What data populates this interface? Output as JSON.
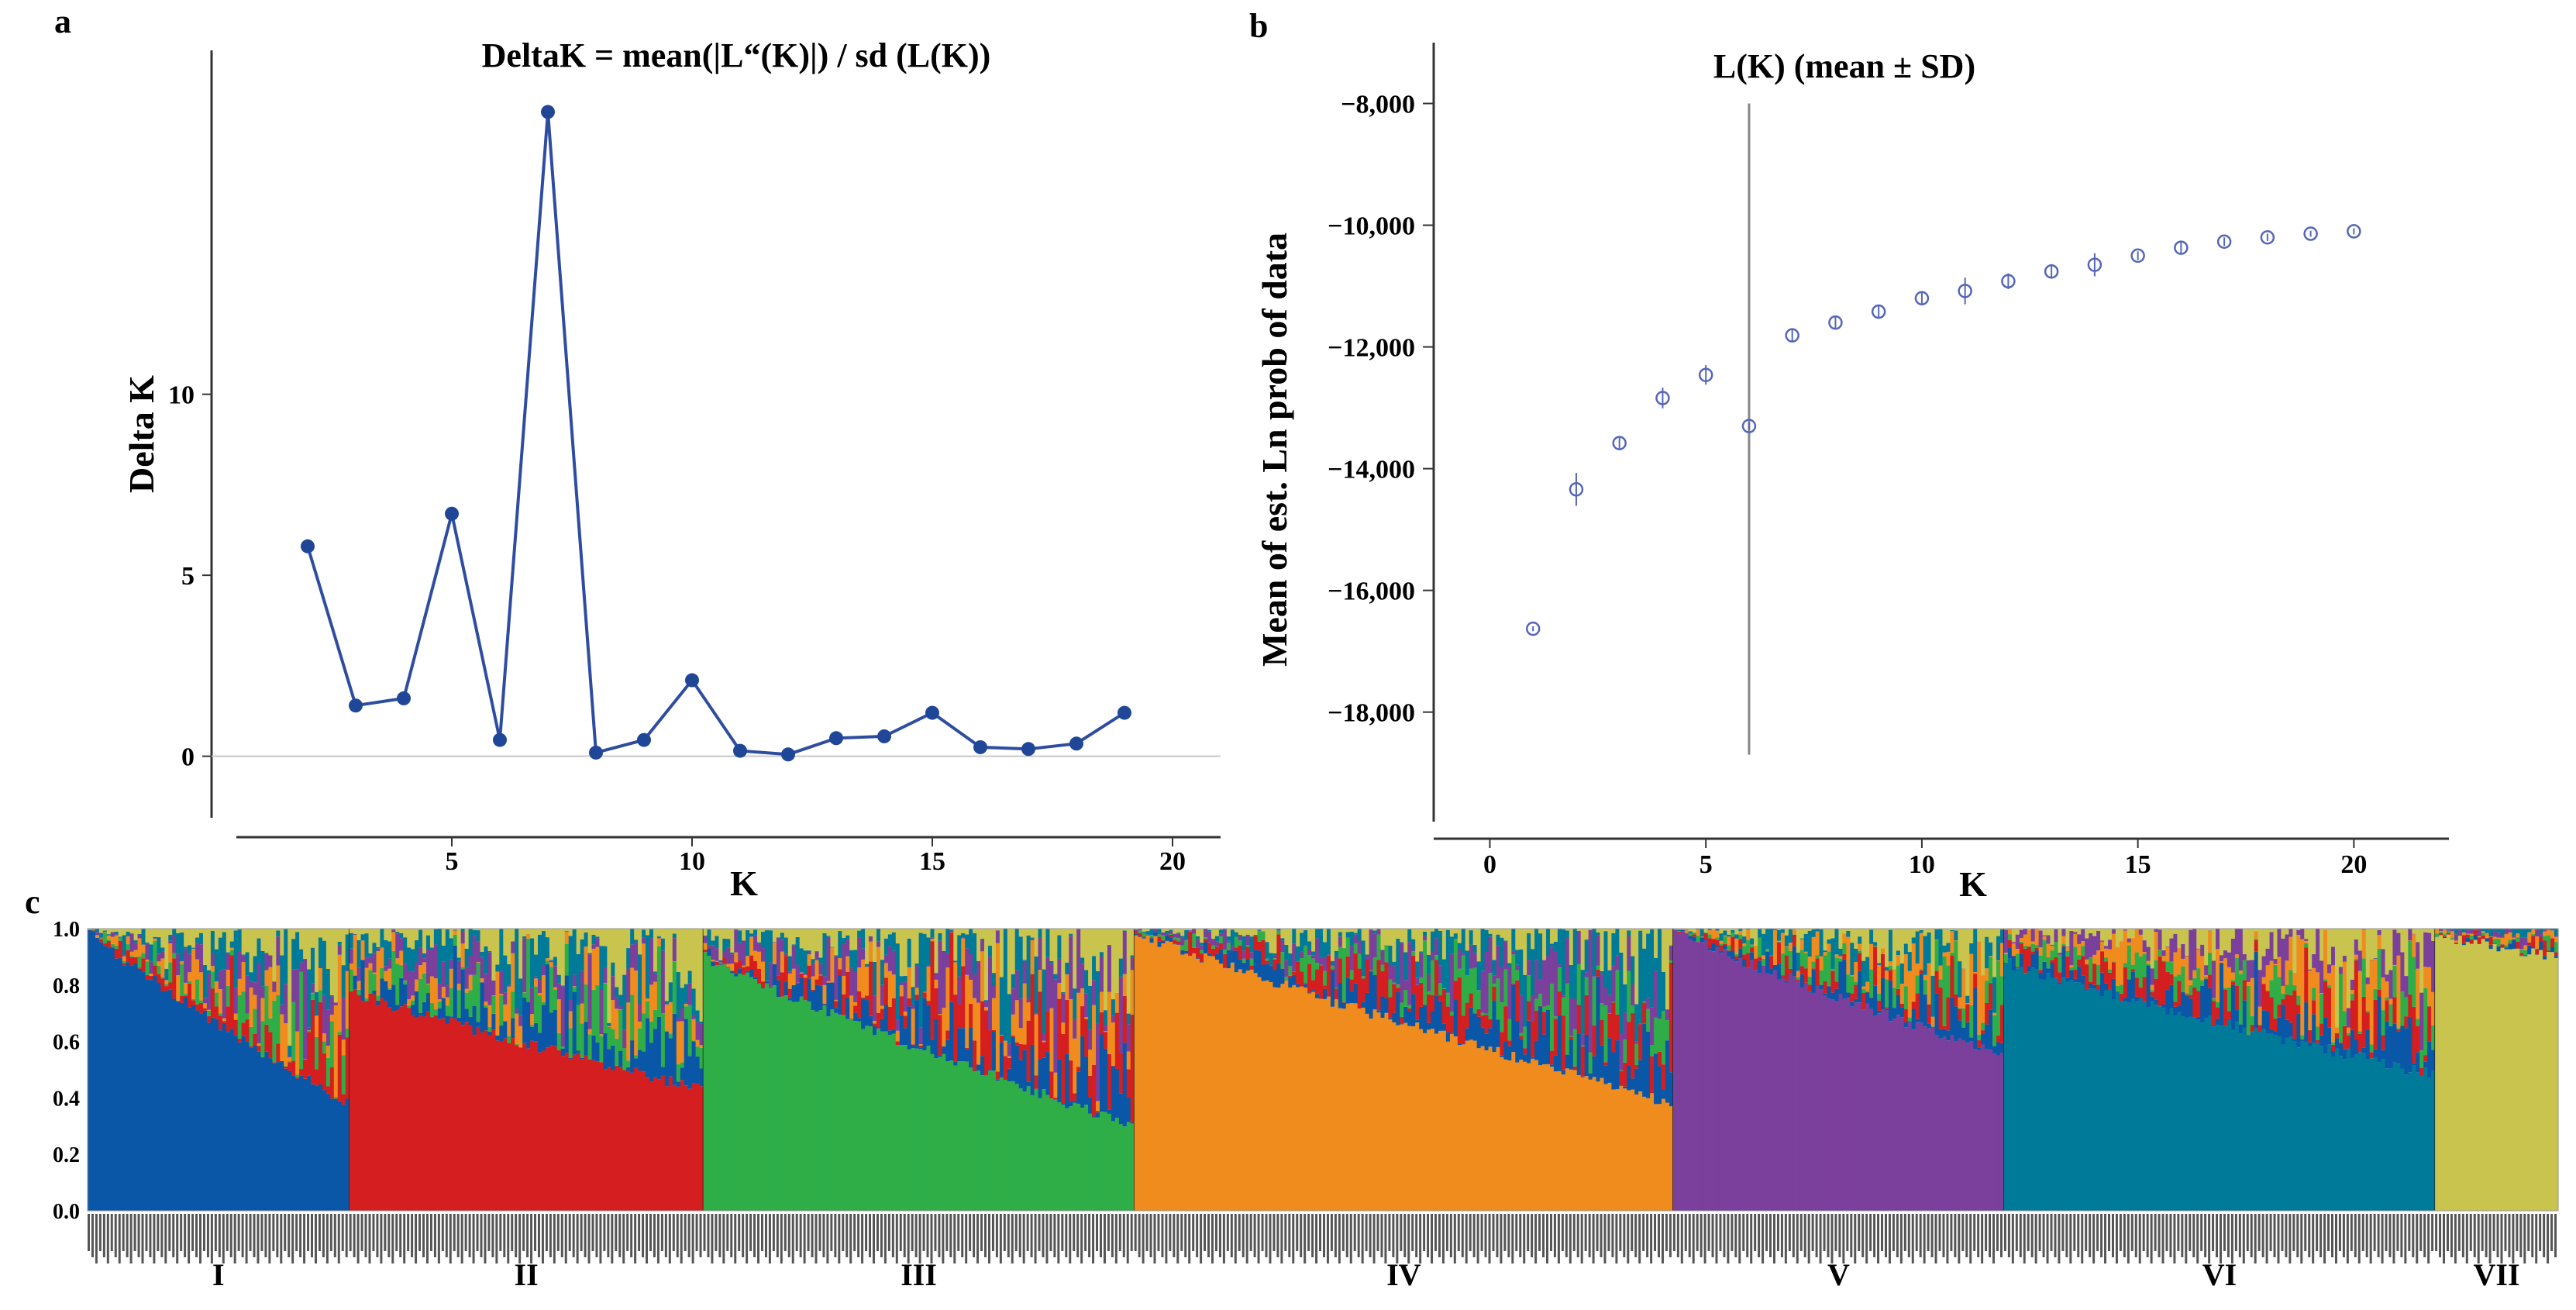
{
  "chart_data": [
    {
      "panel": "a",
      "type": "line",
      "title": "DeltaK = mean(|L“(K)|) / sd (L(K))",
      "xlabel": "K",
      "ylabel": "Delta K",
      "xlim": [
        0,
        21
      ],
      "ylim": [
        -1.7,
        19.5
      ],
      "xticks": [
        5,
        10,
        15,
        20
      ],
      "yticks": [
        0,
        5,
        10
      ],
      "color": "#2F4DA0",
      "series": [
        {
          "name": "Delta K",
          "x": [
            2,
            3,
            4,
            5,
            6,
            7,
            8,
            9,
            10,
            11,
            12,
            13,
            14,
            15,
            16,
            17,
            18,
            19
          ],
          "values": [
            5.8,
            1.4,
            1.6,
            6.7,
            0.45,
            17.8,
            0.1,
            0.45,
            2.1,
            0.15,
            0.05,
            0.5,
            0.55,
            1.2,
            0.25,
            0.2,
            0.35,
            1.2
          ]
        }
      ]
    },
    {
      "panel": "b",
      "type": "scatter",
      "title": "L(K) (mean ± SD)",
      "xlabel": "K",
      "ylabel": "Mean of est. Ln prob of data",
      "xlim": [
        -1.3,
        22.2
      ],
      "ylim": [
        -19800,
        -7000
      ],
      "xticks": [
        0,
        5,
        10,
        15,
        20
      ],
      "yticks": [
        -8000,
        -10000,
        -12000,
        -14000,
        -16000,
        -18000
      ],
      "ytick_labels": [
        "−8,000",
        "−10,000",
        "−12,000",
        "−14,000",
        "−16,000",
        "−18,000"
      ],
      "marker_color": "#5566B8",
      "reference_line": {
        "x": 6,
        "y_range": [
          -18700,
          -8000
        ]
      },
      "series": [
        {
          "name": "L(K)",
          "x": [
            1,
            2,
            3,
            4,
            5,
            6,
            7,
            8,
            9,
            10,
            11,
            12,
            13,
            14,
            15,
            16,
            17,
            18,
            19,
            20
          ],
          "values": [
            -16630,
            -14340,
            -13580,
            -12840,
            -12460,
            -13300,
            -11810,
            -11600,
            -11420,
            -11200,
            -11080,
            -10920,
            -10760,
            -10650,
            -10500,
            -10370,
            -10270,
            -10200,
            -10140,
            -10100
          ],
          "sd": [
            40,
            270,
            90,
            170,
            160,
            60,
            90,
            110,
            90,
            110,
            220,
            130,
            120,
            190,
            70,
            90,
            70,
            60,
            50,
            50
          ]
        }
      ]
    },
    {
      "panel": "c",
      "type": "bar",
      "stacked": true,
      "ylim": [
        0,
        1
      ],
      "yticks": [
        0.0,
        0.2,
        0.4,
        0.6,
        0.8,
        1.0
      ],
      "ytick_labels": [
        "0.0",
        "0.2",
        "0.4",
        "0.6",
        "0.8",
        "1.0"
      ],
      "cluster_colors": [
        "#0A57A8",
        "#D41E20",
        "#2FAE48",
        "#F08C1E",
        "#7B3F9C",
        "#007A99",
        "#C9C44E"
      ],
      "groups": [
        {
          "label": "I",
          "dominant_cluster": 0,
          "main_start": 0.99,
          "main_end": 0.38,
          "bars": 68
        },
        {
          "label": "II",
          "dominant_cluster": 1,
          "main_start": 0.78,
          "main_end": 0.43,
          "bars": 92
        },
        {
          "label": "III",
          "dominant_cluster": 2,
          "main_start": 0.9,
          "main_end": 0.3,
          "bars": 112
        },
        {
          "label": "IV",
          "dominant_cluster": 3,
          "main_start": 0.99,
          "main_end": 0.38,
          "bars": 140
        },
        {
          "label": "V",
          "dominant_cluster": 4,
          "main_start": 0.99,
          "main_end": 0.55,
          "bars": 86
        },
        {
          "label": "VI",
          "dominant_cluster": 5,
          "main_start": 0.88,
          "main_end": 0.48,
          "bars": 112
        },
        {
          "label": "VII",
          "dominant_cluster": 6,
          "main_start": 0.98,
          "main_end": 0.9,
          "bars": 32
        }
      ]
    }
  ]
}
